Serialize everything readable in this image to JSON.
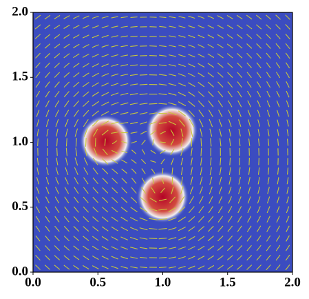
{
  "chart_data": {
    "type": "heatmap",
    "x": [
      0.56,
      1.07,
      1.0
    ],
    "y": [
      1.01,
      1.09,
      0.58
    ],
    "radius": [
      0.15,
      0.15,
      0.15
    ],
    "background_color": "#3b4cc0",
    "color": "#b40426",
    "arrow_color": "#c9c83a",
    "xlim": [
      0,
      2
    ],
    "ylim": [
      0,
      2
    ],
    "xticks": [
      {
        "value": 0,
        "label": "0.0"
      },
      {
        "value": 0.5,
        "label": "0.5"
      },
      {
        "value": 1,
        "label": "1.0"
      },
      {
        "value": 1.5,
        "label": "1.5"
      },
      {
        "value": 2,
        "label": "2.0"
      }
    ],
    "yticks": [
      {
        "value": 0,
        "label": "0.0"
      },
      {
        "value": 0.5,
        "label": "0.5"
      },
      {
        "value": 1,
        "label": "1.0"
      },
      {
        "value": 1.5,
        "label": "1.5"
      },
      {
        "value": 2,
        "label": "2.0"
      }
    ]
  }
}
